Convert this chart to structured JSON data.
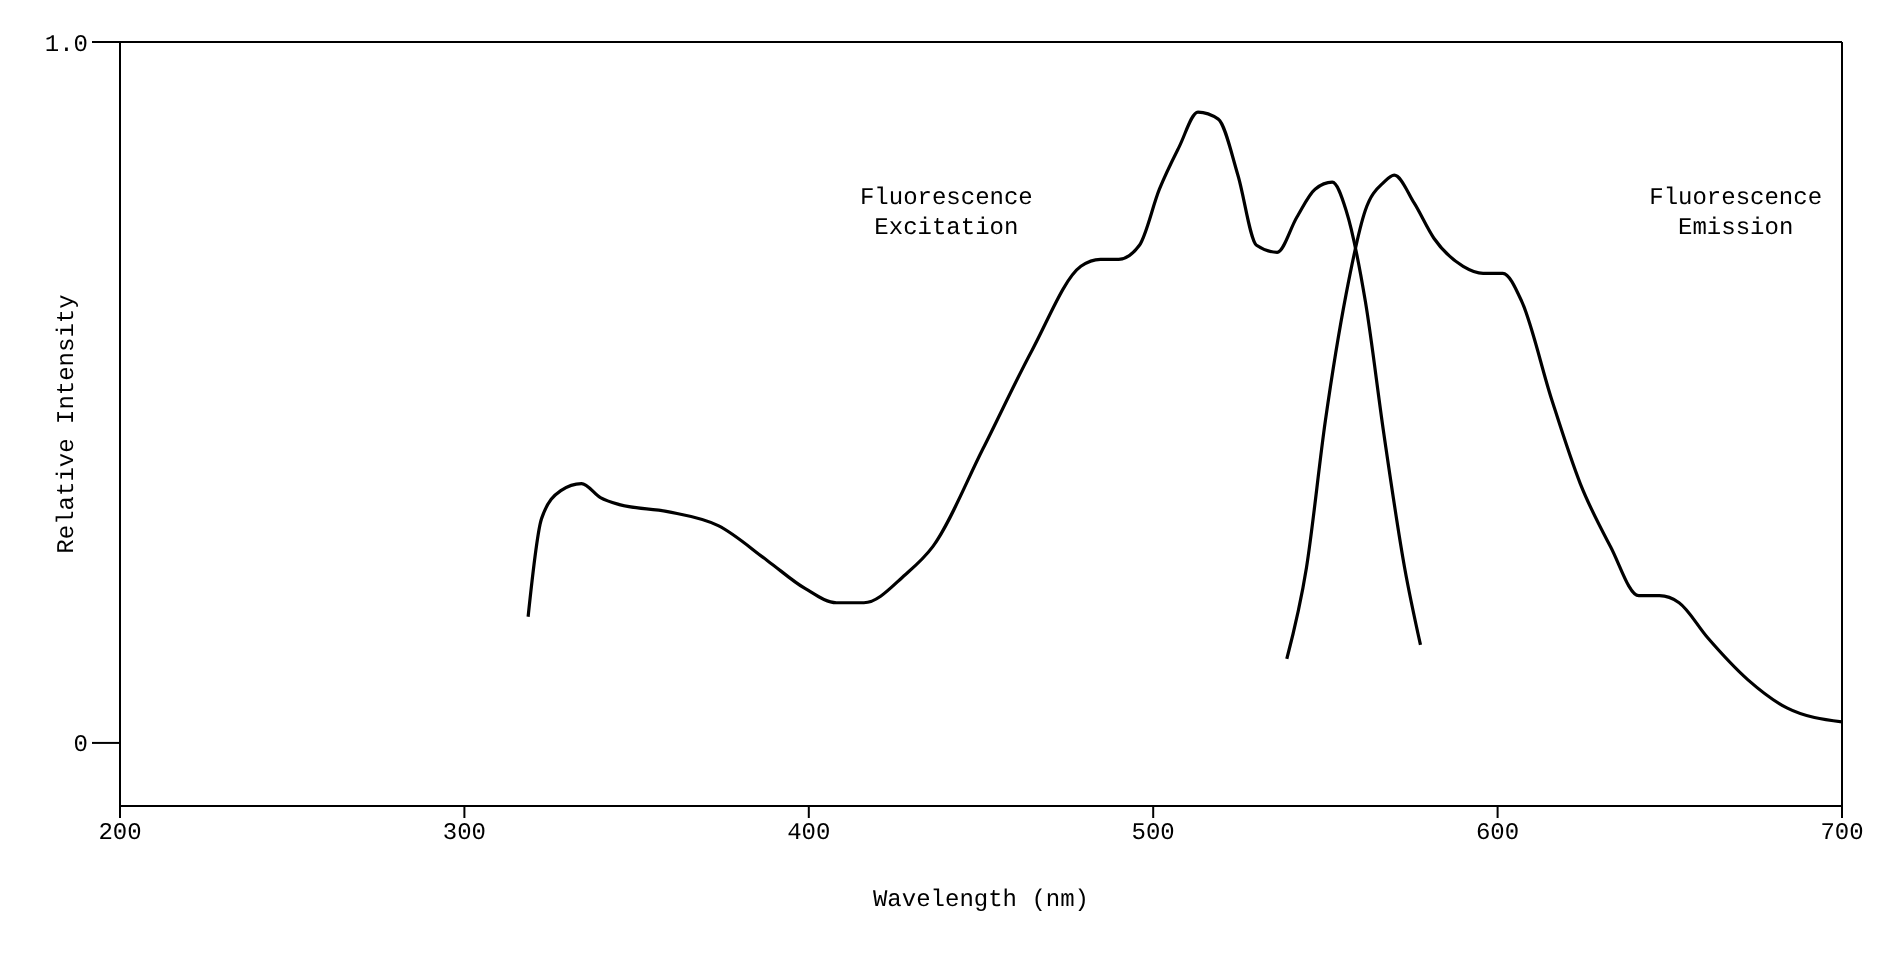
{
  "chart_data": {
    "type": "line",
    "xlabel": "Wavelength (nm)",
    "ylabel": "Relative Intensity",
    "xlim": [
      200,
      700
    ],
    "xticks": [
      200,
      300,
      400,
      500,
      600,
      700
    ],
    "ylim": [
      -0.09,
      1.0
    ],
    "yticks": [
      0,
      {
        "value": 1.0,
        "label": "1.0"
      }
    ],
    "marker": "none",
    "line_style": "solid",
    "annotations": [
      "Fluorescence Excitation",
      "Fluorescence Emission"
    ],
    "series": [
      {
        "color": "#000000",
        "x": [
          318.5,
          322.4,
          328,
          334,
          339.5,
          345,
          359,
          373.7,
          388,
          399,
          408,
          416,
          428,
          436,
          450.6,
          464.8,
          479,
          484.7,
          490,
          496,
          501.8,
          507.5,
          513,
          518.9,
          524.6,
          530,
          536,
          541.7,
          547,
          552,
          556,
          561.6,
          567,
          573,
          577.6
        ],
        "values": [
          0.18,
          0.32,
          0.36,
          0.37,
          0.35,
          0.34,
          0.33,
          0.31,
          0.26,
          0.22,
          0.2,
          0.2,
          0.24,
          0.28,
          0.42,
          0.56,
          0.68,
          0.69,
          0.69,
          0.71,
          0.79,
          0.85,
          0.9,
          0.89,
          0.81,
          0.71,
          0.7,
          0.75,
          0.79,
          0.8,
          0.76,
          0.63,
          0.44,
          0.25,
          0.14
        ]
      },
      {
        "color": "#000000",
        "x": [
          538.8,
          544.5,
          550,
          556,
          561.6,
          567,
          570,
          575.8,
          581.5,
          590,
          595.8,
          601.5,
          607,
          615.7,
          624,
          632.8,
          641,
          647,
          652.7,
          661,
          672.7,
          684,
          700
        ],
        "values": [
          0.12,
          0.25,
          0.46,
          0.64,
          0.76,
          0.8,
          0.81,
          0.77,
          0.72,
          0.68,
          0.67,
          0.67,
          0.63,
          0.49,
          0.37,
          0.28,
          0.21,
          0.21,
          0.2,
          0.15,
          0.09,
          0.05,
          0.03
        ]
      }
    ]
  }
}
